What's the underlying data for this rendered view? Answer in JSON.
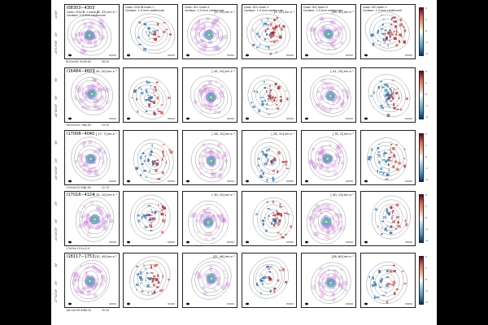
{
  "axis_labels": {
    "x": "Right Ascension",
    "y": "Declination"
  },
  "column_headers": [
    "Color: CH₃CN → mom 0\nContour: 1.3 mm continuum",
    "Color: CH₃CN mom 1\nContour: 1.3 mm continuum",
    "Color: SO₂ mom 0\nContour: 1.3 mm continuum",
    "Color: SO₂ mom 1\nContour: 1.3 mm continuum",
    "Color: SiO mom 0\nContour: 1.3 mm continuum",
    "Color: SiO mom 1\nContour: 1.3 mm continuum"
  ],
  "colorbar_ticks": [
    "2",
    "1",
    "0",
    "-1",
    "-2"
  ],
  "rows": [
    {
      "source": "I08303−4303",
      "velocities": [
        "[5, 22] km s⁻¹",
        "",
        "[5, 22] km s⁻¹",
        "[5, 22] km s⁻¹",
        "[18, 30] km s⁻¹",
        ""
      ],
      "dec_ticks": [
        "-43°13'30\"",
        "45\"",
        "14'00\""
      ],
      "ra_ticks": [
        "8h32m08.70s",
        "08.60",
        "08.50"
      ],
      "cmap": [
        "purple",
        "rdbu",
        "purple",
        "rdbu",
        "purple",
        "rdbu"
      ]
    },
    {
      "source": "I16484−4603",
      "velocities": [
        "[ 45, 20] km s⁻¹",
        "",
        "[ 45, 20] km s⁻¹",
        "",
        "[ 41, 24] km s⁻¹",
        ""
      ],
      "dec_ticks": [
        "-46°08'25\"",
        "30\"",
        "35\""
      ],
      "ra_ticks": [
        "16h52m04.70s",
        "04.60",
        "04.50"
      ],
      "cmap": [
        "purple",
        "rdbu",
        "purple",
        "rdbu",
        "purple",
        "rdbu"
      ]
    },
    {
      "source": "I17008−4040",
      "velocities": [
        "[ 27, 7] km s⁻¹",
        "",
        "[ 26, 10] km s⁻¹",
        "[ 26, 10] km s⁻¹",
        "[ 35, 0] km s⁻¹",
        ""
      ],
      "dec_ticks": [
        "-40°44'20\"",
        "25\"",
        "30\""
      ],
      "ra_ticks": [
        "17h04m22.90s",
        "22.80",
        "22.70"
      ],
      "cmap": [
        "purple",
        "rdbu",
        "purple",
        "rdbu",
        "purple",
        "rdbu"
      ]
    },
    {
      "source": "I17016−4124",
      "velocities": [
        "[ 34, 10] km s⁻¹",
        "",
        "[ 30, 20] km s⁻¹",
        "",
        "[ 40, 13] km s⁻¹",
        ""
      ],
      "dec_ticks": [
        "-41°28'25\"",
        "30\"",
        "35\""
      ],
      "ra_ticks": [
        "17h05m11.0s",
        "10.9"
      ],
      "cmap": [
        "purple",
        "rdbu",
        "purple",
        "rdbu",
        "purple",
        "rdbu"
      ]
    },
    {
      "source": "I18117−1753",
      "velocities": [
        "[32, 49] km s⁻¹",
        "",
        "[32, 46] km s⁻¹",
        "",
        "[26, 60] km s⁻¹",
        ""
      ],
      "dec_ticks": [
        "-17°52'20\"",
        "25\"",
        "30\""
      ],
      "ra_ticks": [
        "18h14m39.60s",
        "39.50",
        "39.40"
      ],
      "cmap": [
        "purple",
        "rdbu",
        "purple",
        "rdbu",
        "purple",
        "rdbu"
      ]
    }
  ]
}
